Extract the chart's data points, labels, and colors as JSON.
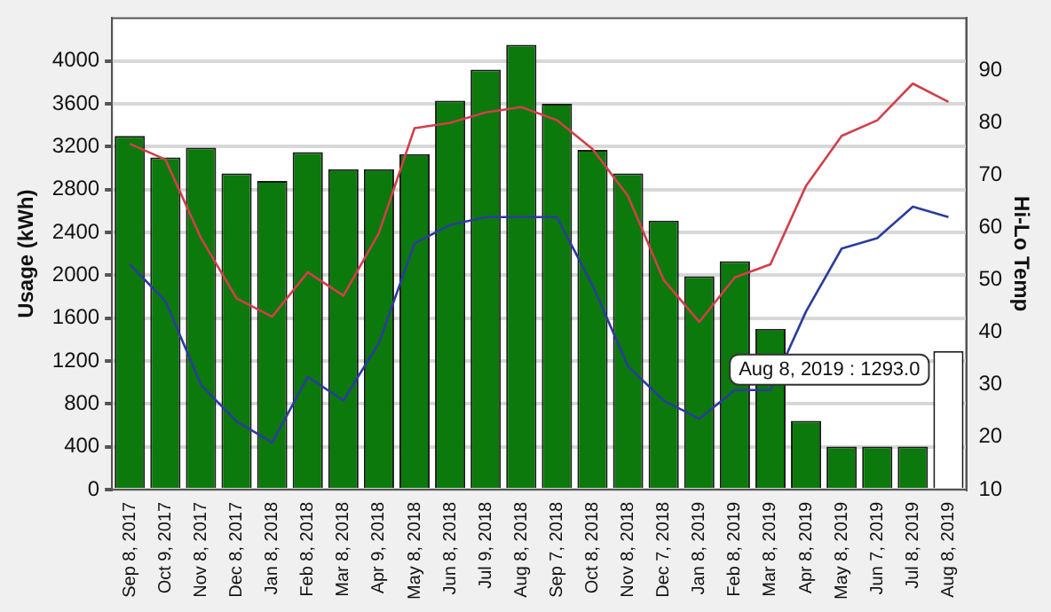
{
  "chart_data": {
    "type": "bar",
    "ylabel": "Usage (kWh)",
    "y2label": "Hi-Lo Temp",
    "categories": [
      "Sep 8, 2017",
      "Oct 9, 2017",
      "Nov 8, 2017",
      "Dec 8, 2017",
      "Jan 8, 2018",
      "Feb 8, 2018",
      "Mar 8, 2018",
      "Apr 9, 2018",
      "May 8, 2018",
      "Jun 8, 2018",
      "Jul 9, 2018",
      "Aug 8, 2018",
      "Sep 7, 2018",
      "Oct 8, 2018",
      "Nov 8, 2018",
      "Dec 7, 2018",
      "Jan 8, 2019",
      "Feb 8, 2019",
      "Mar 8, 2019",
      "Apr 8, 2019",
      "May 8, 2019",
      "Jun 7, 2019",
      "Jul 8, 2019",
      "Aug 8, 2019"
    ],
    "series": [
      {
        "colors": [
          "#0b790b",
          "#0b790b",
          "#0b790b",
          "#0b790b",
          "#0b790b",
          "#0b790b",
          "#0b790b",
          "#0b790b",
          "#0b790b",
          "#0b790b",
          "#0b790b",
          "#0b790b",
          "#0b790b",
          "#0b790b",
          "#0b790b",
          "#0b790b",
          "#0b790b",
          "#0b790b",
          "#0b790b",
          "#0b790b",
          "#0b790b",
          "#0b790b",
          "#0b790b",
          "#ffffff"
        ],
        "values": [
          3300,
          3100,
          3190,
          2950,
          2880,
          3150,
          2990,
          2990,
          3130,
          3630,
          3920,
          4150,
          3600,
          3170,
          2950,
          2510,
          1990,
          2130,
          1500,
          640,
          400,
          400,
          400,
          1293
        ]
      },
      {
        "type": "line",
        "axis": "y2",
        "color": "#d0404a",
        "values": [
          76,
          73,
          58,
          46.5,
          43,
          51.5,
          47,
          59,
          79,
          80,
          82,
          83,
          80.5,
          75,
          66,
          50,
          42,
          50.5,
          53,
          68,
          77.5,
          80.5,
          87.5,
          84
        ]
      },
      {
        "type": "line",
        "axis": "y2",
        "color": "#2c3c9c",
        "values": [
          53,
          46,
          30,
          23,
          19,
          31.5,
          27,
          38,
          57,
          60.5,
          62,
          62,
          62,
          49,
          33.5,
          27,
          23.5,
          29,
          29,
          44,
          56,
          58,
          64,
          62
        ]
      }
    ],
    "ylim": [
      0,
      4400
    ],
    "yticks": [
      0,
      400,
      800,
      1200,
      1600,
      2000,
      2400,
      2800,
      3200,
      3600,
      4000
    ],
    "y2lim": [
      10,
      100
    ],
    "y2ticks": [
      10,
      20,
      30,
      40,
      50,
      60,
      70,
      80,
      90
    ],
    "grid": "y",
    "marker": "none",
    "annotations": [
      {
        "text": "Aug 8, 2019 : 1293.0",
        "x": "Aug 8, 2019",
        "y": 1293
      }
    ]
  }
}
